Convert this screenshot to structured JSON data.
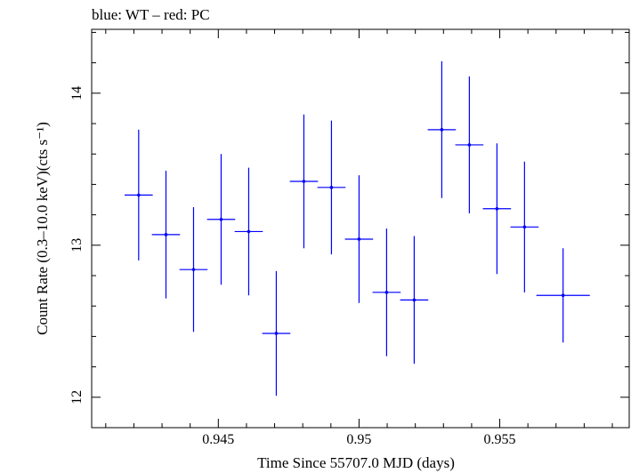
{
  "chart_data": {
    "type": "scatter",
    "title": "blue: WT – red: PC",
    "xlabel": "Time Since 55707.0 MJD (days)",
    "ylabel": "Count Rate (0.3–10.0 keV)(cts s⁻¹)",
    "xlim": [
      0.9405,
      0.9596
    ],
    "ylim": [
      11.8,
      14.42
    ],
    "x_ticks": [
      {
        "value": 0.945,
        "label": "0.945"
      },
      {
        "value": 0.95,
        "label": "0.95"
      },
      {
        "value": 0.955,
        "label": "0.955"
      }
    ],
    "y_ticks": [
      {
        "value": 12,
        "label": "12"
      },
      {
        "value": 13,
        "label": "13"
      },
      {
        "value": 14,
        "label": "14"
      }
    ],
    "grid": false,
    "series": [
      {
        "name": "WT",
        "color": "#0000ff",
        "points": [
          {
            "x": 0.94217,
            "xerr": 0.0005,
            "y": 13.33,
            "yerr": 0.43
          },
          {
            "x": 0.94314,
            "xerr": 0.0005,
            "y": 13.07,
            "yerr": 0.42
          },
          {
            "x": 0.94412,
            "xerr": 0.0005,
            "y": 12.84,
            "yerr": 0.41
          },
          {
            "x": 0.9451,
            "xerr": 0.0005,
            "y": 13.17,
            "yerr": 0.43
          },
          {
            "x": 0.94608,
            "xerr": 0.0005,
            "y": 13.09,
            "yerr": 0.42
          },
          {
            "x": 0.94706,
            "xerr": 0.0005,
            "y": 12.42,
            "yerr": 0.41
          },
          {
            "x": 0.94804,
            "xerr": 0.0005,
            "y": 13.42,
            "yerr": 0.44
          },
          {
            "x": 0.94902,
            "xerr": 0.0005,
            "y": 13.38,
            "yerr": 0.44
          },
          {
            "x": 0.95,
            "xerr": 0.0005,
            "y": 13.04,
            "yerr": 0.42
          },
          {
            "x": 0.95098,
            "xerr": 0.0005,
            "y": 12.69,
            "yerr": 0.42
          },
          {
            "x": 0.95196,
            "xerr": 0.0005,
            "y": 12.64,
            "yerr": 0.42
          },
          {
            "x": 0.95294,
            "xerr": 0.0005,
            "y": 13.76,
            "yerr": 0.45
          },
          {
            "x": 0.95392,
            "xerr": 0.0005,
            "y": 13.66,
            "yerr": 0.45
          },
          {
            "x": 0.9549,
            "xerr": 0.0005,
            "y": 13.24,
            "yerr": 0.43
          },
          {
            "x": 0.95588,
            "xerr": 0.0005,
            "y": 13.12,
            "yerr": 0.43
          },
          {
            "x": 0.95725,
            "xerr": 0.00095,
            "y": 12.67,
            "yerr": 0.31
          }
        ]
      }
    ]
  }
}
